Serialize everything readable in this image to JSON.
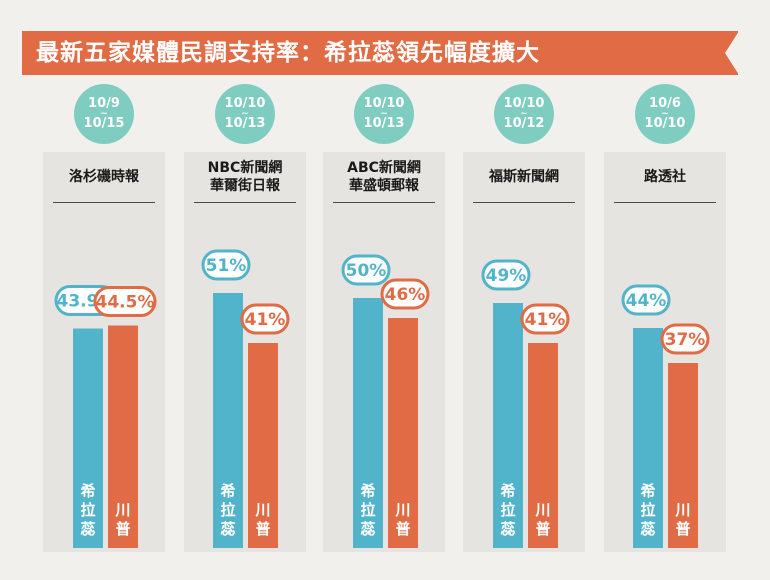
{
  "title": "最新五家媒體民調支持率：希拉蕊領先幅度擴大",
  "colors": {
    "clinton": "#52b4ca",
    "trump": "#e06b45",
    "badge": "#7fcdc0",
    "banner": "#e06b45"
  },
  "polls": [
    {
      "date_start": "10/9",
      "date_sep": "~",
      "date_end": "10/15",
      "source_line1": "洛杉磯時報",
      "source_line2": ""
    },
    {
      "date_start": "10/10",
      "date_sep": "~",
      "date_end": "10/13",
      "source_line1": "NBC新聞網",
      "source_line2": "華爾街日報"
    },
    {
      "date_start": "10/10",
      "date_sep": "~",
      "date_end": "10/13",
      "source_line1": "ABC新聞網",
      "source_line2": "華盛頓郵報"
    },
    {
      "date_start": "10/10",
      "date_sep": "~",
      "date_end": "10/12",
      "source_line1": "福斯新聞網",
      "source_line2": ""
    },
    {
      "date_start": "10/6",
      "date_sep": "~",
      "date_end": "10/10",
      "source_line1": "路透社",
      "source_line2": ""
    }
  ],
  "chart_data": {
    "type": "bar",
    "title": "最新五家媒體民調支持率：希拉蕊領先幅度擴大",
    "categories": [
      "洛杉磯時報",
      "NBC新聞網 華爾街日報",
      "ABC新聞網 華盛頓郵報",
      "福斯新聞網",
      "路透社"
    ],
    "series": [
      {
        "name": "希拉蕊",
        "values": [
          43.9,
          51,
          50,
          49,
          44
        ],
        "labels": [
          "43.9%",
          "51%",
          "50%",
          "49%",
          "44%"
        ],
        "color": "#52b4ca"
      },
      {
        "name": "川普",
        "values": [
          44.5,
          41,
          46,
          41,
          37
        ],
        "labels": [
          "44.5%",
          "41%",
          "46%",
          "41%",
          "37%"
        ],
        "color": "#e06b45"
      }
    ],
    "grid": false,
    "legend": "none"
  }
}
